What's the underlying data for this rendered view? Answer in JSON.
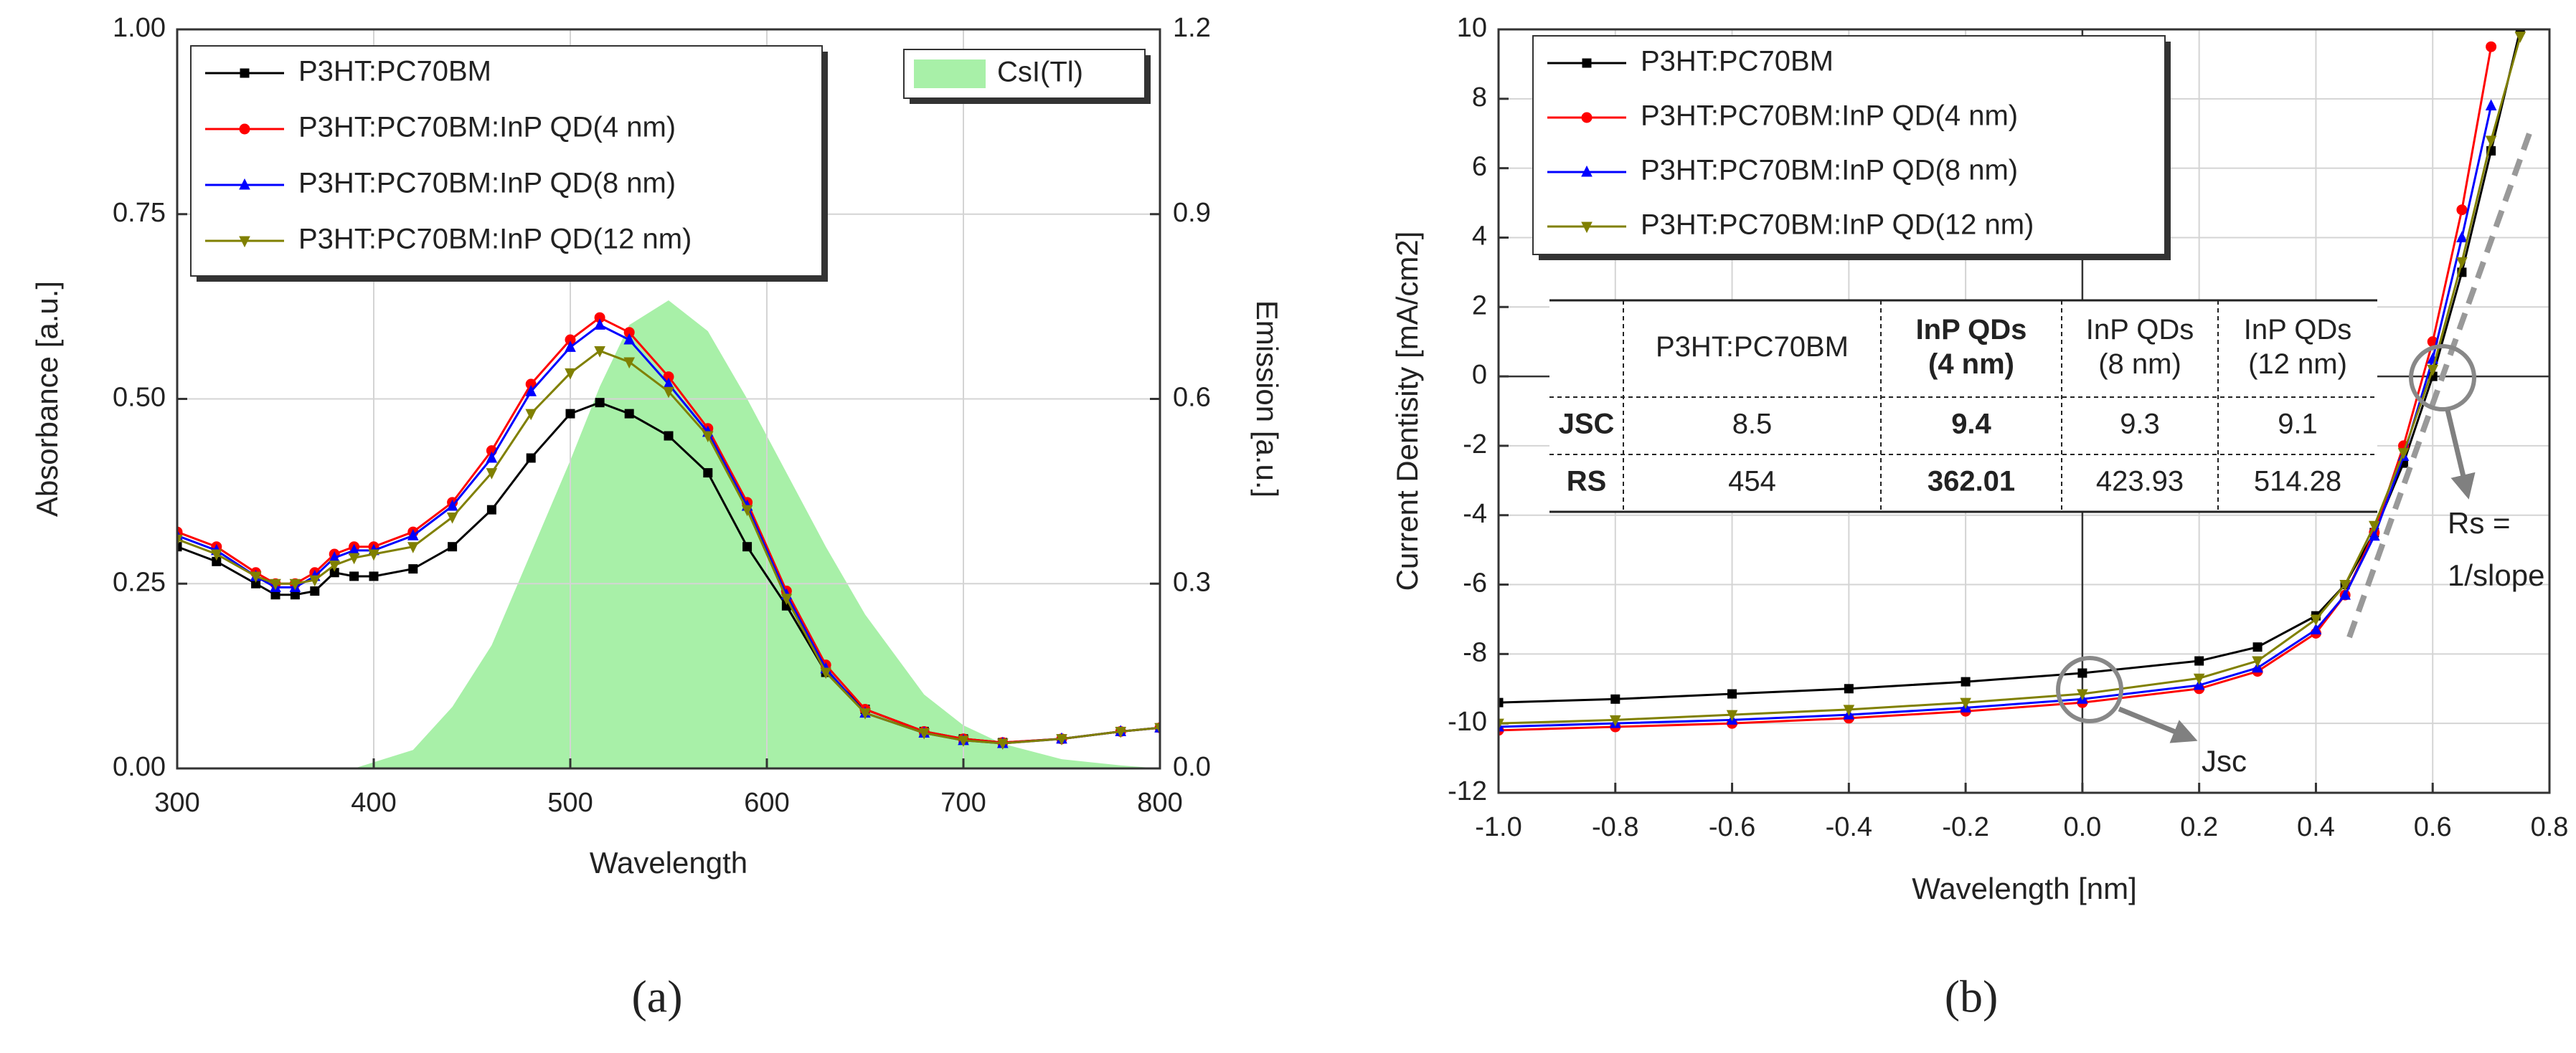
{
  "chart_data": [
    {
      "type": "line",
      "panel_label": "(a)",
      "xlabel": "Wavelength",
      "ylabel": "Absorbance [a.u.]",
      "y2label": "Emission [a.u.]",
      "x": [
        300,
        320,
        340,
        350,
        360,
        370,
        380,
        390,
        400,
        420,
        440,
        460,
        480,
        500,
        515,
        530,
        550,
        570,
        590,
        610,
        630,
        650,
        680,
        700,
        720,
        750,
        780,
        800
      ],
      "series": [
        {
          "name": "P3HT:PC70BM",
          "color": "#000000",
          "marker": "square",
          "values": [
            0.3,
            0.28,
            0.25,
            0.235,
            0.235,
            0.24,
            0.265,
            0.26,
            0.26,
            0.27,
            0.3,
            0.35,
            0.42,
            0.48,
            0.495,
            0.48,
            0.45,
            0.4,
            0.3,
            0.22,
            0.13,
            0.08,
            0.05,
            0.04,
            0.035,
            0.04,
            0.05,
            0.055
          ]
        },
        {
          "name": "P3HT:PC70BM:InP QD(4 nm)",
          "color": "#ff0000",
          "marker": "circle",
          "values": [
            0.32,
            0.3,
            0.265,
            0.25,
            0.25,
            0.265,
            0.29,
            0.3,
            0.3,
            0.32,
            0.36,
            0.43,
            0.52,
            0.58,
            0.61,
            0.59,
            0.53,
            0.46,
            0.36,
            0.24,
            0.14,
            0.08,
            0.05,
            0.04,
            0.035,
            0.04,
            0.05,
            0.055
          ]
        },
        {
          "name": "P3HT:PC70BM:InP QD(8 nm)",
          "color": "#0000ff",
          "marker": "triangle-up",
          "values": [
            0.315,
            0.295,
            0.26,
            0.245,
            0.245,
            0.26,
            0.285,
            0.295,
            0.295,
            0.315,
            0.355,
            0.42,
            0.51,
            0.57,
            0.6,
            0.58,
            0.52,
            0.455,
            0.355,
            0.235,
            0.135,
            0.075,
            0.048,
            0.038,
            0.034,
            0.04,
            0.05,
            0.055
          ]
        },
        {
          "name": "P3HT:PC70BM:InP QD(12 nm)",
          "color": "#808000",
          "marker": "triangle-down",
          "values": [
            0.31,
            0.29,
            0.26,
            0.25,
            0.25,
            0.255,
            0.275,
            0.285,
            0.29,
            0.3,
            0.34,
            0.4,
            0.48,
            0.535,
            0.565,
            0.55,
            0.51,
            0.45,
            0.35,
            0.23,
            0.13,
            0.075,
            0.048,
            0.038,
            0.034,
            0.04,
            0.05,
            0.055
          ]
        },
        {
          "name": "CsI(Tl)",
          "color": "#a8f0a8",
          "type": "area",
          "axis": "y2",
          "values": [
            0,
            0,
            0,
            0,
            0,
            0,
            0,
            0,
            0.01,
            0.03,
            0.1,
            0.2,
            0.35,
            0.5,
            0.62,
            0.72,
            0.76,
            0.71,
            0.6,
            0.48,
            0.36,
            0.25,
            0.12,
            0.07,
            0.04,
            0.015,
            0.005,
            0
          ]
        }
      ],
      "xlim": [
        300,
        800
      ],
      "xticks": [
        300,
        400,
        500,
        600,
        700,
        800
      ],
      "ylim": [
        0,
        1
      ],
      "yticks": [
        {
          "value": 0,
          "label": "0.00"
        },
        0.25,
        {
          "value": 0.5,
          "label": "0.50"
        },
        0.75,
        {
          "value": 1,
          "label": "1.00"
        }
      ],
      "y2lim": [
        0,
        1.2
      ],
      "y2ticks": [
        {
          "value": 0,
          "label": "0.0"
        },
        0.3,
        0.6,
        0.9,
        1.2
      ],
      "grid": true,
      "legend": "upper left"
    },
    {
      "type": "line",
      "panel_label": "(b)",
      "xlabel": "Wavelength [nm]",
      "ylabel": "Current Dentisity [mA/cm2]",
      "x": [
        -1.0,
        -0.8,
        -0.6,
        -0.4,
        -0.2,
        0,
        0.2,
        0.3,
        0.4,
        0.45,
        0.5,
        0.55,
        0.6,
        0.65,
        0.7,
        0.75
      ],
      "series": [
        {
          "name": "P3HT:PC70BM",
          "color": "#000000",
          "marker": "square",
          "values": [
            -9.4,
            -9.3,
            -9.15,
            -9.0,
            -8.8,
            -8.55,
            -8.2,
            -7.8,
            -6.9,
            -6.0,
            -4.5,
            -2.5,
            0,
            3,
            6.5,
            10
          ]
        },
        {
          "name": "P3HT:PC70BM:InP QD(4 nm)",
          "color": "#ff0000",
          "marker": "circle",
          "values": [
            -10.2,
            -10.1,
            -10.0,
            -9.85,
            -9.65,
            -9.4,
            -9.0,
            -8.5,
            -7.4,
            -6.3,
            -4.5,
            -2,
            1,
            4.8,
            9.5,
            null
          ]
        },
        {
          "name": "P3HT:PC70BM:InP QD(8 nm)",
          "color": "#0000ff",
          "marker": "triangle-up",
          "values": [
            -10.1,
            -10.0,
            -9.9,
            -9.75,
            -9.55,
            -9.3,
            -8.9,
            -8.4,
            -7.3,
            -6.3,
            -4.6,
            -2.3,
            0.5,
            4,
            7.8,
            null
          ]
        },
        {
          "name": "P3HT:PC70BM:InP QD(12 nm)",
          "color": "#808000",
          "marker": "triangle-down",
          "values": [
            -10.0,
            -9.9,
            -9.75,
            -9.6,
            -9.4,
            -9.15,
            -8.7,
            -8.2,
            -7.0,
            -6.0,
            -4.3,
            -2.2,
            0.2,
            3.3,
            6.8,
            9.8
          ]
        }
      ],
      "xlim": [
        -1.0,
        0.8
      ],
      "xticks": [
        {
          "value": -1,
          "label": "-1.0"
        },
        -0.8,
        -0.6,
        -0.4,
        -0.2,
        {
          "value": 0,
          "label": "0.0"
        },
        0.2,
        0.4,
        0.6,
        0.8
      ],
      "ylim": [
        -12,
        10
      ],
      "yticks": [
        -12,
        -10,
        -8,
        -6,
        -4,
        -2,
        0,
        2,
        4,
        6,
        8,
        10
      ],
      "grid": true,
      "legend": "upper left",
      "table": {
        "header": [
          [
            "P3HT:PC70BM"
          ],
          [
            "InP QDs",
            "(4 nm)"
          ],
          [
            "InP QDs",
            "(8 nm)"
          ],
          [
            "InP QDs",
            "(12 nm)"
          ]
        ],
        "bold_column": 1,
        "rows": [
          {
            "label": "JSC",
            "values": [
              8.5,
              9.4,
              9.3,
              9.1
            ]
          },
          {
            "label": "RS",
            "values": [
              454,
              362.01,
              423.93,
              514.28
            ]
          }
        ]
      },
      "annotations": [
        "Rs =",
        "1/slope",
        "Jsc"
      ]
    }
  ]
}
